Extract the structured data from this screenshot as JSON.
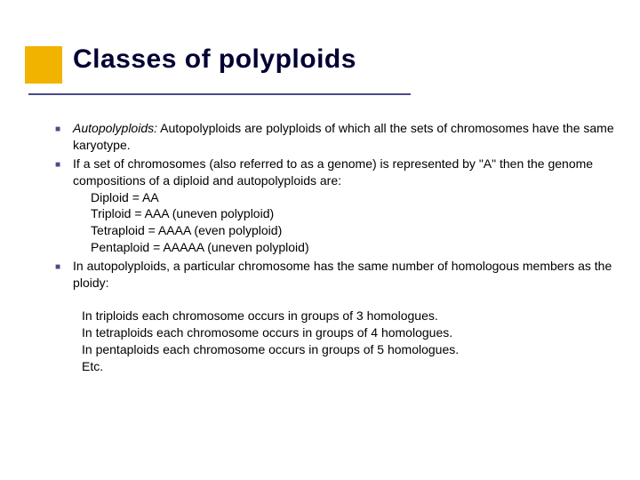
{
  "title": "Classes of polyploids",
  "colors": {
    "accent_yellow": "#f2b300",
    "accent_purple": "#4a4a8a",
    "title_color": "#000033",
    "text_color": "#000000",
    "background": "#ffffff"
  },
  "typography": {
    "title_fontsize": 30,
    "body_fontsize": 14,
    "font_family": "Verdana, Arial, sans-serif"
  },
  "bullets": [
    {
      "label": "Autopolyploids:",
      "rest": " Autopolyploids are polyploids of which all the sets of chromosomes have the same karyotype."
    },
    {
      "label": "",
      "rest": "If a set of chromosomes (also referred to as a genome) is represented by \"A\" then the genome compositions of a diploid and autopolyploids are:",
      "sublines": [
        "Diploid = AA",
        "Triploid = AAA (uneven polyploid)",
        "Tetraploid = AAAA (even polyploid)",
        "Pentaploid = AAAAA (uneven polyploid)"
      ]
    },
    {
      "label": "",
      "rest": "In autopolyploids, a particular chromosome has the same number of homologous members as the ploidy:"
    }
  ],
  "footer_lines": [
    "In triploids each chromosome occurs in groups of 3 homologues.",
    "In tetraploids each chromosome occurs in groups of 4 homologues.",
    "In pentaploids each chromosome occurs in groups of 5 homologues.",
    "Etc."
  ]
}
